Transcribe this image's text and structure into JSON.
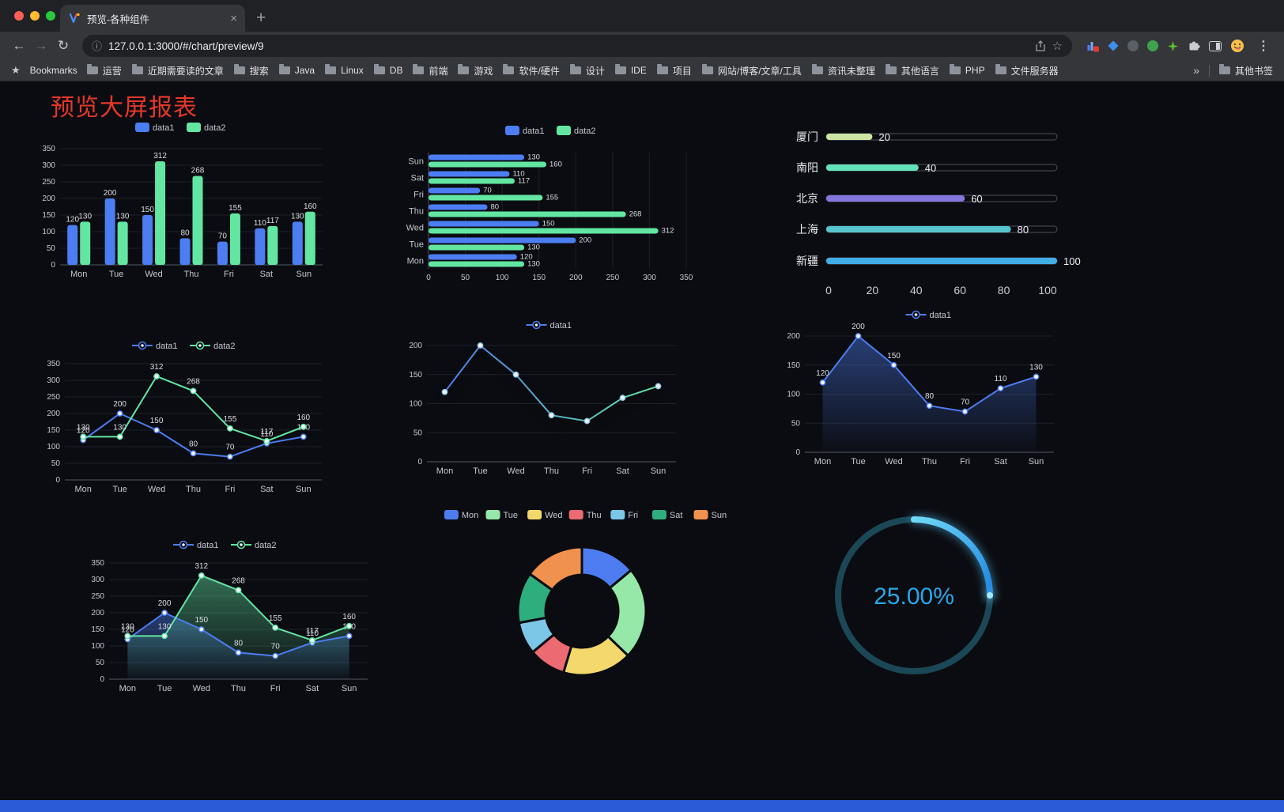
{
  "browser": {
    "tab_title": "预览-各种组件",
    "close_glyph": "×",
    "new_tab_glyph": "+",
    "back_glyph": "←",
    "forward_glyph": "→",
    "reload_glyph": "↻",
    "info_glyph": "ⓘ",
    "star_glyph": "☆",
    "bookmarks_star_glyph": "★",
    "menu_glyph": "⋮",
    "url": "127.0.0.1:3000/#/chart/preview/9",
    "bookmarks_label": "Bookmarks",
    "bookmarks": [
      "运营",
      "近期需要读的文章",
      "搜索",
      "Java",
      "Linux",
      "DB",
      "前端",
      "游戏",
      "软件/硬件",
      "设计",
      "IDE",
      "项目",
      "网站/博客/文章/工具",
      "资讯未整理",
      "其他语言",
      "PHP",
      "文件服务器"
    ],
    "overflow_chevron": "»",
    "other_bookmarks_label": "其他书签"
  },
  "page": {
    "title": "预览大屏报表",
    "title_color": "#E5382B",
    "background": "#0B0C11",
    "footer_color": "#2B5BD7"
  },
  "chart_data": [
    {
      "id": "grouped-bar",
      "type": "bar",
      "categories": [
        "Mon",
        "Tue",
        "Wed",
        "Thu",
        "Fri",
        "Sat",
        "Sun"
      ],
      "series": [
        {
          "name": "data1",
          "color": "#4C7DF2",
          "values": [
            120,
            200,
            150,
            80,
            70,
            110,
            130
          ]
        },
        {
          "name": "data2",
          "color": "#62E6A2",
          "values": [
            130,
            130,
            312,
            268,
            155,
            117,
            160
          ]
        }
      ],
      "ylim": [
        0,
        350
      ],
      "ytick": 50,
      "legend": true,
      "value_labels": true,
      "legend_position": "top"
    },
    {
      "id": "horizontal-bar",
      "type": "bar",
      "orientation": "horizontal",
      "categories": [
        "Mon",
        "Tue",
        "Wed",
        "Thu",
        "Fri",
        "Sat",
        "Sun"
      ],
      "series": [
        {
          "name": "data1",
          "color": "#4C7DF2",
          "values": [
            120,
            200,
            150,
            80,
            70,
            110,
            130
          ]
        },
        {
          "name": "data2",
          "color": "#62E6A2",
          "values": [
            130,
            130,
            312,
            268,
            155,
            117,
            160
          ]
        }
      ],
      "xlim": [
        0,
        350
      ],
      "xtick": 50,
      "legend": true,
      "value_labels": true,
      "legend_position": "top"
    },
    {
      "id": "city-progress",
      "type": "bar",
      "orientation": "progress",
      "categories": [
        "厦门",
        "南阳",
        "北京",
        "上海",
        "新疆"
      ],
      "values": [
        20,
        40,
        60,
        80,
        100
      ],
      "colors": [
        "#CDE6A3",
        "#63E2B7",
        "#8377DE",
        "#58C4CE",
        "#41AEE8"
      ],
      "xlim": [
        0,
        100
      ],
      "xticks": [
        0,
        20,
        40,
        60,
        80,
        100
      ]
    },
    {
      "id": "dual-line",
      "type": "line",
      "categories": [
        "Mon",
        "Tue",
        "Wed",
        "Thu",
        "Fri",
        "Sat",
        "Sun"
      ],
      "series": [
        {
          "name": "data1",
          "color": "#4C7DF2",
          "values": [
            120,
            200,
            150,
            80,
            70,
            110,
            130
          ]
        },
        {
          "name": "data2",
          "color": "#62E6A2",
          "values": [
            130,
            130,
            312,
            268,
            155,
            117,
            160
          ]
        }
      ],
      "ylim": [
        0,
        350
      ],
      "ytick": 50,
      "legend": true,
      "value_labels": true,
      "legend_position": "top"
    },
    {
      "id": "gradient-line",
      "type": "line",
      "categories": [
        "Mon",
        "Tue",
        "Wed",
        "Thu",
        "Fri",
        "Sat",
        "Sun"
      ],
      "series": [
        {
          "name": "data1",
          "gradient": [
            "#4C7DF2",
            "#62E6A2"
          ],
          "values": [
            120,
            200,
            150,
            80,
            70,
            110,
            130
          ]
        }
      ],
      "ylim": [
        0,
        200
      ],
      "ytick": 50,
      "legend": true,
      "value_labels": false,
      "legend_position": "top"
    },
    {
      "id": "area-line",
      "type": "area",
      "categories": [
        "Mon",
        "Tue",
        "Wed",
        "Thu",
        "Fri",
        "Sat",
        "Sun"
      ],
      "series": [
        {
          "name": "data1",
          "color": "#4C7DF2",
          "area": true,
          "values": [
            120,
            200,
            150,
            80,
            70,
            110,
            130
          ]
        }
      ],
      "ylim": [
        0,
        200
      ],
      "ytick": 50,
      "legend": true,
      "value_labels": true,
      "legend_position": "top"
    },
    {
      "id": "dual-area-line",
      "type": "area",
      "categories": [
        "Mon",
        "Tue",
        "Wed",
        "Thu",
        "Fri",
        "Sat",
        "Sun"
      ],
      "series": [
        {
          "name": "data1",
          "color": "#4C7DF2",
          "area": true,
          "values": [
            120,
            200,
            150,
            80,
            70,
            110,
            130
          ]
        },
        {
          "name": "data2",
          "color": "#62E6A2",
          "area": true,
          "values": [
            130,
            130,
            312,
            268,
            155,
            117,
            160
          ]
        }
      ],
      "ylim": [
        0,
        350
      ],
      "ytick": 50,
      "legend": true,
      "value_labels": true,
      "legend_position": "top"
    },
    {
      "id": "donut",
      "type": "pie",
      "categories": [
        "Mon",
        "Tue",
        "Wed",
        "Thu",
        "Fri",
        "Sat",
        "Sun"
      ],
      "values": [
        120,
        200,
        150,
        80,
        70,
        110,
        130
      ],
      "colors": [
        "#4D7CF0",
        "#95E8A7",
        "#F3D96B",
        "#EC6A72",
        "#7CC7E8",
        "#2FAE7D",
        "#F0914E"
      ],
      "inner_radius_ratio": 0.57,
      "legend": true,
      "legend_position": "top"
    },
    {
      "id": "gauge",
      "type": "gauge",
      "percent": 25,
      "value_label": "25.00%",
      "color": "#2AA6E8",
      "track_color": "#1B4756",
      "arc_gradient": [
        "#6FD8F6",
        "#1F86DF"
      ]
    }
  ]
}
